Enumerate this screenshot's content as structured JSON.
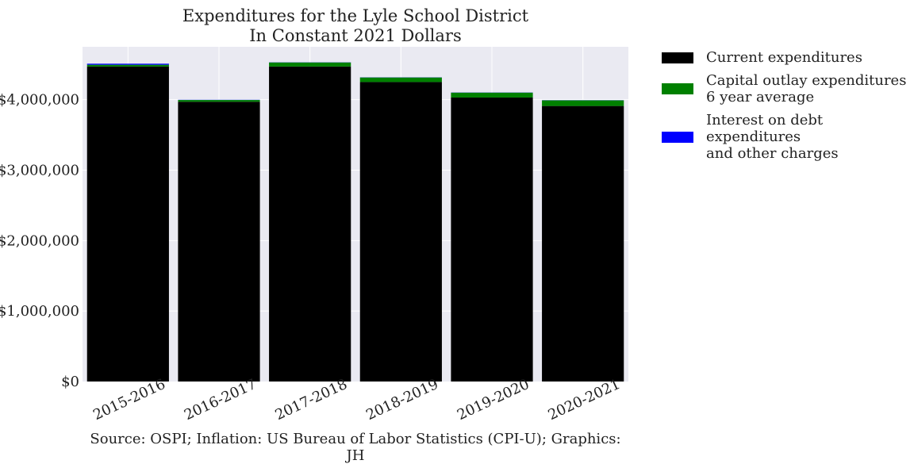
{
  "chart_data": {
    "type": "bar",
    "stacked": true,
    "title": "Expenditures for the Lyle School District",
    "subtitle": "In Constant 2021 Dollars",
    "categories": [
      "2015-2016",
      "2016-2017",
      "2017-2018",
      "2018-2019",
      "2019-2020",
      "2020-2021"
    ],
    "series": [
      {
        "name": "Current expenditures",
        "color": "#000000",
        "values": [
          4470000,
          3970000,
          4470000,
          4250000,
          4030000,
          3910000
        ]
      },
      {
        "name": "Capital outlay expenditures\n6 year average",
        "color": "#008000",
        "values": [
          25000,
          25000,
          58000,
          65000,
          70000,
          80000
        ]
      },
      {
        "name": "Interest on debt expenditures\nand other charges",
        "color": "#0000ff",
        "values": [
          15000,
          3000,
          2000,
          2000,
          2000,
          2000
        ]
      }
    ],
    "ylim": [
      0,
      4750000
    ],
    "yticks": [
      0,
      1000000,
      2000000,
      3000000,
      4000000
    ],
    "ytick_labels": [
      "$0",
      "$1,000,000",
      "$2,000,000",
      "$3,000,000",
      "$4,000,000"
    ],
    "xlabel": "",
    "ylabel": "",
    "grid": true,
    "legend_position": "outside-right",
    "background": "#eaeaf2",
    "source": "Source: OSPI; Inflation: US Bureau of Labor Statistics (CPI-U); Graphics: JH"
  }
}
